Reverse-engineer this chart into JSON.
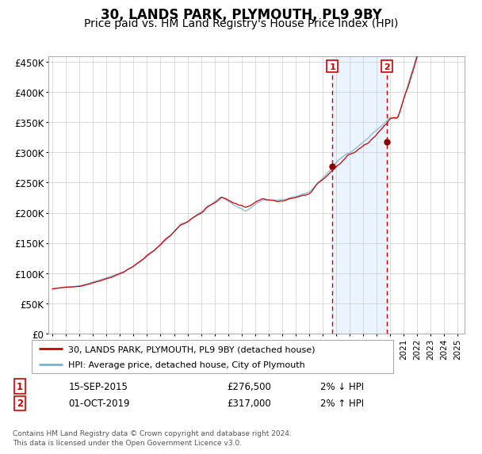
{
  "title": "30, LANDS PARK, PLYMOUTH, PL9 9BY",
  "subtitle": "Price paid vs. HM Land Registry's House Price Index (HPI)",
  "title_fontsize": 12,
  "subtitle_fontsize": 10,
  "ylabel_ticks": [
    "£0",
    "£50K",
    "£100K",
    "£150K",
    "£200K",
    "£250K",
    "£300K",
    "£350K",
    "£400K",
    "£450K"
  ],
  "ylabel_values": [
    0,
    50000,
    100000,
    150000,
    200000,
    250000,
    300000,
    350000,
    400000,
    450000
  ],
  "ylim": [
    0,
    460000
  ],
  "xlim_start": 1994.7,
  "xlim_end": 2025.5,
  "sale1_date": 2015.71,
  "sale1_price": 276500,
  "sale2_date": 2019.75,
  "sale2_price": 317000,
  "sale1_label": "15-SEP-2015",
  "sale2_label": "01-OCT-2019",
  "sale1_hpi": "2% ↓ HPI",
  "sale2_hpi": "2% ↑ HPI",
  "legend_line1": "30, LANDS PARK, PLYMOUTH, PL9 9BY (detached house)",
  "legend_line2": "HPI: Average price, detached house, City of Plymouth",
  "footer": "Contains HM Land Registry data © Crown copyright and database right 2024.\nThis data is licensed under the Open Government Licence v3.0.",
  "red_line_color": "#cc0000",
  "blue_line_color": "#7ab0d4",
  "bg_shaded_color": "#ddeeff",
  "vline_color": "#cc0000",
  "dot_color": "#880000",
  "box_color": "#cc0000",
  "grid_color": "#cccccc",
  "fig_width": 6.0,
  "fig_height": 5.6,
  "dpi": 100
}
